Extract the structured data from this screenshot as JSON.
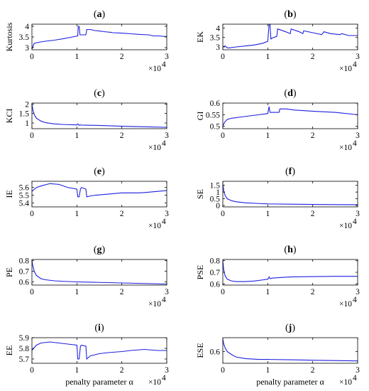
{
  "chart_data": [
    {
      "id": "a",
      "label": "a",
      "type": "line",
      "ylabel": "Kurtosis",
      "xlabel": "",
      "x_multiplier": "×10",
      "x_multiplier_exp": "4",
      "xlim": [
        0,
        3
      ],
      "xticks": [
        "0",
        "1",
        "2",
        "3"
      ],
      "ylim": [
        2.9,
        4.1
      ],
      "yticks": [
        3,
        3.5,
        4
      ],
      "ytick_labels": [
        "3",
        "3.5",
        "4"
      ],
      "series": [
        {
          "x": [
            0,
            0.05,
            0.15,
            0.3,
            0.5,
            0.7,
            0.9,
            1.02,
            1.03,
            1.05,
            1.07,
            1.08,
            1.1,
            1.2,
            1.22,
            1.3,
            1.4,
            1.5,
            1.6,
            1.75,
            1.8,
            2.0,
            2.2,
            2.4,
            2.6,
            2.7,
            2.8,
            3.0
          ],
          "y": [
            2.95,
            3.2,
            3.25,
            3.3,
            3.35,
            3.42,
            3.5,
            3.55,
            4.0,
            4.0,
            3.6,
            3.6,
            3.6,
            3.6,
            3.85,
            3.85,
            3.8,
            3.78,
            3.75,
            3.72,
            3.7,
            3.68,
            3.65,
            3.62,
            3.6,
            3.55,
            3.55,
            3.52
          ]
        }
      ]
    },
    {
      "id": "b",
      "label": "b",
      "type": "line",
      "ylabel": "EK",
      "xlabel": "",
      "x_multiplier": "×10",
      "x_multiplier_exp": "4",
      "xlim": [
        0,
        3
      ],
      "xticks": [
        "0",
        "1",
        "2",
        "3"
      ],
      "ylim": [
        2.85,
        4.2
      ],
      "yticks": [
        3,
        3.5,
        4
      ],
      "ytick_labels": [
        "3",
        "3.5",
        "4"
      ],
      "series": [
        {
          "x": [
            0,
            0.05,
            0.1,
            0.15,
            0.3,
            0.5,
            0.7,
            0.9,
            1.0,
            1.03,
            1.05,
            1.07,
            1.08,
            1.2,
            1.22,
            1.4,
            1.5,
            1.52,
            1.7,
            1.78,
            1.8,
            2.0,
            2.2,
            2.25,
            2.4,
            2.6,
            2.65,
            2.8,
            3.0
          ],
          "y": [
            3.0,
            3.05,
            2.95,
            2.95,
            3.0,
            3.05,
            3.1,
            3.2,
            3.3,
            4.2,
            4.2,
            3.4,
            3.45,
            3.55,
            3.95,
            3.8,
            3.7,
            3.95,
            3.8,
            3.7,
            3.85,
            3.75,
            3.65,
            3.8,
            3.7,
            3.65,
            3.7,
            3.6,
            3.6
          ]
        }
      ]
    },
    {
      "id": "c",
      "label": "c",
      "type": "line",
      "ylabel": "KCI",
      "xlabel": "",
      "x_multiplier": "×10",
      "x_multiplier_exp": "4",
      "xlim": [
        0,
        3
      ],
      "xticks": [
        "0",
        "1",
        "2",
        "3"
      ],
      "ylim": [
        0.7,
        2.05
      ],
      "yticks": [
        1,
        1.5,
        2
      ],
      "ytick_labels": [
        "1",
        "1.5",
        "2"
      ],
      "series": [
        {
          "x": [
            0,
            0.02,
            0.05,
            0.1,
            0.2,
            0.3,
            0.5,
            0.7,
            1.0,
            1.02,
            1.05,
            1.08,
            1.1,
            1.3,
            1.5,
            2.0,
            2.5,
            3.0
          ],
          "y": [
            2.0,
            1.7,
            1.45,
            1.25,
            1.1,
            1.02,
            0.95,
            0.92,
            0.9,
            0.95,
            0.88,
            0.9,
            0.89,
            0.88,
            0.87,
            0.83,
            0.8,
            0.77
          ]
        }
      ]
    },
    {
      "id": "d",
      "label": "d",
      "type": "line",
      "ylabel": "GI",
      "xlabel": "",
      "x_multiplier": "×10",
      "x_multiplier_exp": "4",
      "xlim": [
        0,
        3
      ],
      "xticks": [
        "0",
        "1",
        "2",
        "3"
      ],
      "ylim": [
        0.49,
        0.6
      ],
      "yticks": [
        0.5,
        0.55,
        0.6
      ],
      "ytick_labels": [
        "0.5",
        "0.55",
        "0.6"
      ],
      "series": [
        {
          "x": [
            0,
            0.02,
            0.05,
            0.1,
            0.2,
            0.4,
            0.6,
            0.8,
            1.0,
            1.03,
            1.05,
            1.07,
            1.1,
            1.25,
            1.27,
            1.4,
            1.6,
            2.0,
            2.5,
            3.0
          ],
          "y": [
            0.5,
            0.51,
            0.52,
            0.53,
            0.535,
            0.54,
            0.545,
            0.55,
            0.555,
            0.585,
            0.56,
            0.56,
            0.56,
            0.56,
            0.575,
            0.575,
            0.57,
            0.565,
            0.56,
            0.55
          ]
        }
      ]
    },
    {
      "id": "e",
      "label": "e",
      "type": "line",
      "ylabel": "IE",
      "xlabel": "",
      "x_multiplier": "×10",
      "x_multiplier_exp": "4",
      "xlim": [
        0,
        3
      ],
      "xticks": [
        "0",
        "1",
        "2",
        "3"
      ],
      "ylim": [
        5.35,
        5.68
      ],
      "yticks": [
        5.4,
        5.5,
        5.6
      ],
      "ytick_labels": [
        "5.4",
        "5.5",
        "5.6"
      ],
      "series": [
        {
          "x": [
            0,
            0.1,
            0.2,
            0.4,
            0.6,
            0.8,
            1.0,
            1.02,
            1.05,
            1.08,
            1.1,
            1.2,
            1.22,
            1.3,
            1.4,
            1.6,
            1.8,
            2.0,
            2.2,
            2.4,
            2.6,
            2.8,
            3.0
          ],
          "y": [
            5.55,
            5.6,
            5.62,
            5.65,
            5.64,
            5.6,
            5.58,
            5.48,
            5.48,
            5.58,
            5.6,
            5.58,
            5.48,
            5.49,
            5.5,
            5.51,
            5.52,
            5.53,
            5.53,
            5.53,
            5.54,
            5.55,
            5.56
          ]
        }
      ]
    },
    {
      "id": "f",
      "label": "f",
      "type": "line",
      "ylabel": "SE",
      "xlabel": "",
      "x_multiplier": "×10",
      "x_multiplier_exp": "4",
      "xlim": [
        0,
        3
      ],
      "xticks": [
        "0",
        "1",
        "2",
        "3"
      ],
      "ylim": [
        -0.1,
        1.8
      ],
      "yticks": [
        0,
        0.5,
        1,
        1.5
      ],
      "ytick_labels": [
        "0",
        "0.5",
        "1",
        "1.5"
      ],
      "series": [
        {
          "x": [
            0,
            0.02,
            0.05,
            0.1,
            0.2,
            0.3,
            0.5,
            0.8,
            1.0,
            1.5,
            2.0,
            2.5,
            3.0
          ],
          "y": [
            1.6,
            1.1,
            0.75,
            0.5,
            0.35,
            0.28,
            0.2,
            0.15,
            0.12,
            0.1,
            0.08,
            0.07,
            0.06
          ]
        }
      ]
    },
    {
      "id": "g",
      "label": "g",
      "type": "line",
      "ylabel": "PE",
      "xlabel": "",
      "x_multiplier": "×10",
      "x_multiplier_exp": "4",
      "xlim": [
        0,
        3
      ],
      "xticks": [
        "0",
        "1",
        "2",
        "3"
      ],
      "ylim": [
        0.57,
        0.81
      ],
      "yticks": [
        0.6,
        0.7,
        0.8
      ],
      "ytick_labels": [
        "0.6",
        "0.7",
        "0.8"
      ],
      "series": [
        {
          "x": [
            0,
            0.02,
            0.05,
            0.1,
            0.2,
            0.3,
            0.5,
            0.7,
            1.0,
            1.5,
            2.0,
            2.5,
            3.0
          ],
          "y": [
            0.8,
            0.75,
            0.7,
            0.66,
            0.63,
            0.62,
            0.61,
            0.605,
            0.6,
            0.595,
            0.59,
            0.585,
            0.58
          ]
        }
      ]
    },
    {
      "id": "h",
      "label": "h",
      "type": "line",
      "ylabel": "PSE",
      "xlabel": "",
      "x_multiplier": "×10",
      "x_multiplier_exp": "4",
      "xlim": [
        0,
        3
      ],
      "xticks": [
        "0",
        "1",
        "2",
        "3"
      ],
      "ylim": [
        0.59,
        0.81
      ],
      "yticks": [
        0.6,
        0.7,
        0.8
      ],
      "ytick_labels": [
        "0.6",
        "0.7",
        "0.8"
      ],
      "series": [
        {
          "x": [
            0,
            0.02,
            0.05,
            0.1,
            0.2,
            0.3,
            0.5,
            0.7,
            0.9,
            1.0,
            1.03,
            1.05,
            1.1,
            1.3,
            1.5,
            2.0,
            2.5,
            3.0
          ],
          "y": [
            0.8,
            0.72,
            0.67,
            0.64,
            0.625,
            0.62,
            0.62,
            0.625,
            0.635,
            0.64,
            0.66,
            0.645,
            0.65,
            0.655,
            0.66,
            0.663,
            0.665,
            0.665
          ]
        }
      ]
    },
    {
      "id": "i",
      "label": "i",
      "type": "line",
      "ylabel": "EE",
      "xlabel": "penalty parameter α",
      "x_multiplier": "×10",
      "x_multiplier_exp": "4",
      "xlim": [
        0,
        3
      ],
      "xticks": [
        "0",
        "1",
        "2",
        "3"
      ],
      "ylim": [
        5.66,
        5.9
      ],
      "yticks": [
        5.7,
        5.8,
        5.9
      ],
      "ytick_labels": [
        "5.7",
        "5.8",
        "5.9"
      ],
      "series": [
        {
          "x": [
            0,
            0.1,
            0.2,
            0.4,
            0.6,
            0.8,
            1.0,
            1.02,
            1.05,
            1.08,
            1.1,
            1.2,
            1.22,
            1.3,
            1.5,
            1.7,
            2.0,
            2.2,
            2.5,
            2.8,
            3.0
          ],
          "y": [
            5.78,
            5.83,
            5.85,
            5.86,
            5.85,
            5.84,
            5.83,
            5.7,
            5.7,
            5.82,
            5.83,
            5.82,
            5.7,
            5.73,
            5.75,
            5.76,
            5.77,
            5.78,
            5.79,
            5.78,
            5.78
          ]
        }
      ]
    },
    {
      "id": "j",
      "label": "j",
      "type": "line",
      "ylabel": "ESE",
      "xlabel": "penalty parameter α",
      "x_multiplier": "×10",
      "x_multiplier_exp": "4",
      "xlim": [
        0,
        3
      ],
      "xticks": [
        "0",
        "1",
        "2",
        "3"
      ],
      "ylim": [
        0.45,
        0.78
      ],
      "yticks": [
        0.6
      ],
      "ytick_labels": [
        "0.6"
      ],
      "series": [
        {
          "x": [
            0,
            0.02,
            0.05,
            0.1,
            0.2,
            0.3,
            0.5,
            0.8,
            1.0,
            1.5,
            2.0,
            2.5,
            3.0
          ],
          "y": [
            0.76,
            0.7,
            0.65,
            0.6,
            0.56,
            0.53,
            0.51,
            0.5,
            0.5,
            0.495,
            0.49,
            0.485,
            0.48
          ]
        }
      ]
    }
  ]
}
